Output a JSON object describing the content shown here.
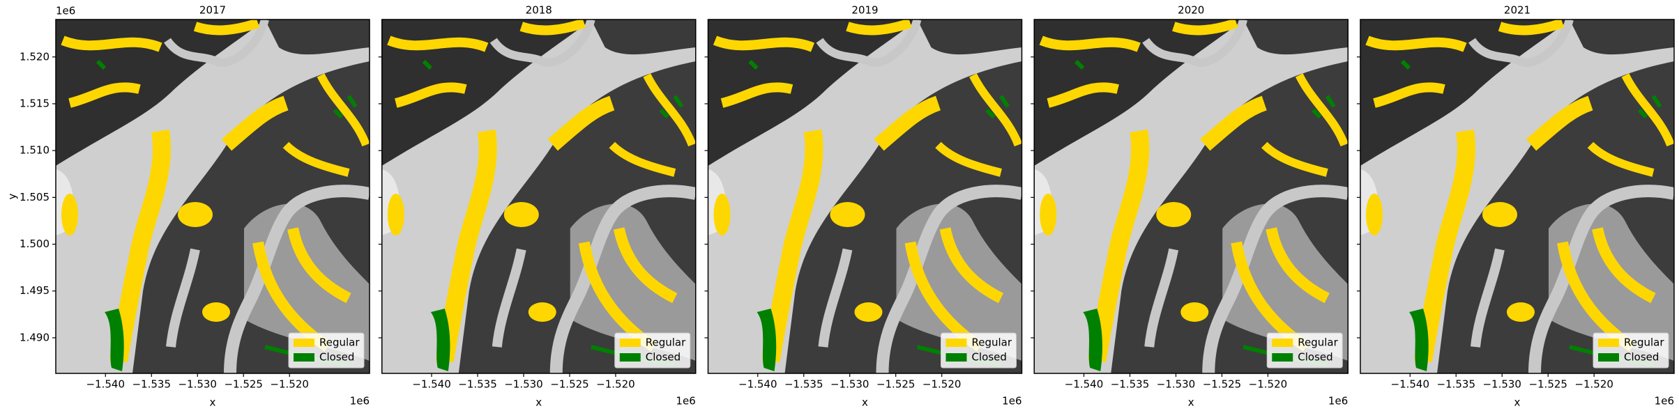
{
  "chart_data": [
    {
      "type": "map",
      "title": "2017",
      "xlabel": "x",
      "ylabel": "y",
      "x_offset": "1e6",
      "y_offset": "1e6",
      "xlim": [
        -1.5454,
        -1.5113
      ],
      "ylim": [
        1.4862,
        1.524
      ],
      "xticks": [
        {
          "value": -1.54,
          "label": "−1.540"
        },
        {
          "value": -1.535,
          "label": "−1.535"
        },
        {
          "value": -1.53,
          "label": "−1.530"
        },
        {
          "value": -1.525,
          "label": "−1.525"
        },
        {
          "value": -1.52,
          "label": "−1.520"
        }
      ],
      "yticks": [
        {
          "value": 1.49,
          "label": "1.490"
        },
        {
          "value": 1.495,
          "label": "1.495"
        },
        {
          "value": 1.5,
          "label": "1.500"
        },
        {
          "value": 1.505,
          "label": "1.505"
        },
        {
          "value": 1.51,
          "label": "1.510"
        },
        {
          "value": 1.515,
          "label": "1.515"
        },
        {
          "value": 1.52,
          "label": "1.520"
        }
      ],
      "legend": "lower right",
      "series": [
        {
          "name": "Regular",
          "color": "#ffd700"
        },
        {
          "name": "Closed",
          "color": "#008000"
        }
      ]
    },
    {
      "type": "map",
      "title": "2018",
      "xlabel": "x",
      "x_offset": "1e6",
      "xlim": [
        -1.5454,
        -1.5113
      ],
      "ylim": [
        1.4862,
        1.524
      ],
      "xticks": [
        {
          "value": -1.54,
          "label": "−1.540"
        },
        {
          "value": -1.535,
          "label": "−1.535"
        },
        {
          "value": -1.53,
          "label": "−1.530"
        },
        {
          "value": -1.525,
          "label": "−1.525"
        },
        {
          "value": -1.52,
          "label": "−1.520"
        }
      ],
      "yticks": [
        1.49,
        1.495,
        1.5,
        1.505,
        1.51,
        1.515,
        1.52
      ],
      "legend": "lower right",
      "series": [
        {
          "name": "Regular",
          "color": "#ffd700"
        },
        {
          "name": "Closed",
          "color": "#008000"
        }
      ]
    },
    {
      "type": "map",
      "title": "2019",
      "xlabel": "x",
      "x_offset": "1e6",
      "xlim": [
        -1.5454,
        -1.5113
      ],
      "ylim": [
        1.4862,
        1.524
      ],
      "xticks": [
        {
          "value": -1.54,
          "label": "−1.540"
        },
        {
          "value": -1.535,
          "label": "−1.535"
        },
        {
          "value": -1.53,
          "label": "−1.530"
        },
        {
          "value": -1.525,
          "label": "−1.525"
        },
        {
          "value": -1.52,
          "label": "−1.520"
        }
      ],
      "yticks": [
        1.49,
        1.495,
        1.5,
        1.505,
        1.51,
        1.515,
        1.52
      ],
      "legend": "lower right",
      "series": [
        {
          "name": "Regular",
          "color": "#ffd700"
        },
        {
          "name": "Closed",
          "color": "#008000"
        }
      ]
    },
    {
      "type": "map",
      "title": "2020",
      "xlabel": "x",
      "x_offset": "1e6",
      "xlim": [
        -1.5454,
        -1.5113
      ],
      "ylim": [
        1.4862,
        1.524
      ],
      "xticks": [
        {
          "value": -1.54,
          "label": "−1.540"
        },
        {
          "value": -1.535,
          "label": "−1.535"
        },
        {
          "value": -1.53,
          "label": "−1.530"
        },
        {
          "value": -1.525,
          "label": "−1.525"
        },
        {
          "value": -1.52,
          "label": "−1.520"
        }
      ],
      "yticks": [
        1.49,
        1.495,
        1.5,
        1.505,
        1.51,
        1.515,
        1.52
      ],
      "legend": "lower right",
      "series": [
        {
          "name": "Regular",
          "color": "#ffd700"
        },
        {
          "name": "Closed",
          "color": "#008000"
        }
      ]
    },
    {
      "type": "map",
      "title": "2021",
      "xlabel": "x",
      "x_offset": "1e6",
      "xlim": [
        -1.5454,
        -1.5113
      ],
      "ylim": [
        1.4862,
        1.524
      ],
      "xticks": [
        {
          "value": -1.54,
          "label": "−1.540"
        },
        {
          "value": -1.535,
          "label": "−1.535"
        },
        {
          "value": -1.53,
          "label": "−1.530"
        },
        {
          "value": -1.525,
          "label": "−1.525"
        },
        {
          "value": -1.52,
          "label": "−1.520"
        }
      ],
      "yticks": [
        1.49,
        1.495,
        1.5,
        1.505,
        1.51,
        1.515,
        1.52
      ],
      "legend": "lower right",
      "series": [
        {
          "name": "Regular",
          "color": "#ffd700"
        },
        {
          "name": "Closed",
          "color": "#008000"
        }
      ]
    }
  ]
}
